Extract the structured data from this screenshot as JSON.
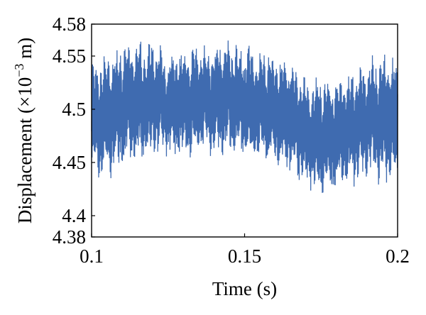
{
  "chart_data": {
    "type": "line",
    "title": "",
    "xlabel": "Time (s)",
    "ylabel_prefix": "Displacement (×10",
    "ylabel_exp": "−3",
    "ylabel_suffix": " m)",
    "xlim": [
      0.1,
      0.2
    ],
    "ylim": [
      4.38,
      4.58
    ],
    "x_ticks": [
      0.1,
      0.15,
      0.2
    ],
    "x_tick_labels": [
      "0.1",
      "0.15",
      "0.2"
    ],
    "y_ticks": [
      4.38,
      4.4,
      4.45,
      4.5,
      4.55,
      4.58
    ],
    "y_tick_labels": [
      "4.38",
      "4.4",
      "4.45",
      "4.5",
      "4.55",
      "4.58"
    ],
    "grid": false,
    "line_color": "#3f6bb0",
    "series": [
      {
        "envelope_x": [
          0.1,
          0.105,
          0.11,
          0.115,
          0.12,
          0.125,
          0.13,
          0.135,
          0.14,
          0.145,
          0.15,
          0.155,
          0.16,
          0.165,
          0.17,
          0.175,
          0.18,
          0.185,
          0.19,
          0.195,
          0.2
        ],
        "upper": [
          4.546,
          4.554,
          4.562,
          4.566,
          4.566,
          4.554,
          4.558,
          4.56,
          4.562,
          4.566,
          4.562,
          4.558,
          4.554,
          4.548,
          4.532,
          4.53,
          4.532,
          4.538,
          4.55,
          4.552,
          4.55
        ],
        "lower": [
          4.43,
          4.432,
          4.444,
          4.448,
          4.452,
          4.452,
          4.452,
          4.456,
          4.456,
          4.456,
          4.45,
          4.448,
          4.446,
          4.44,
          4.424,
          4.416,
          4.42,
          4.426,
          4.432,
          4.428,
          4.43
        ]
      }
    ]
  }
}
